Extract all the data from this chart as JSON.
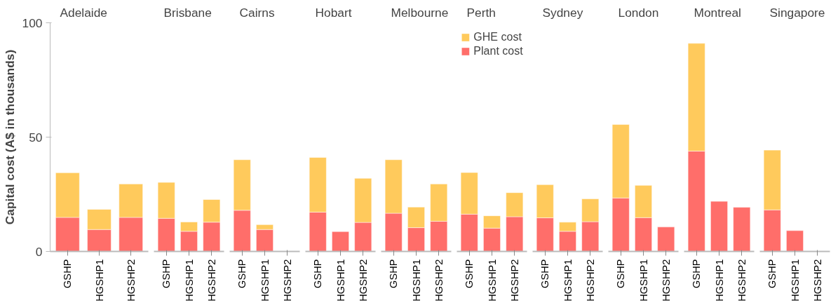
{
  "chart_data": [
    {
      "type": "bar",
      "title": "Adelaide",
      "ylabel": "Capital cost (A$ in thousands)",
      "categories": [
        "GSHP",
        "HGSHP1",
        "HGSHP2"
      ],
      "stacked": true,
      "ylim": [
        0,
        100
      ],
      "yticks": [
        0,
        50,
        100
      ],
      "grid": false,
      "series": [
        {
          "color": "#ff6e6a",
          "values": [
            14.9,
            9.6,
            14.9
          ]
        },
        {
          "color": "#ffca5c",
          "values": [
            19.5,
            8.8,
            14.6
          ]
        }
      ]
    },
    {
      "type": "bar",
      "title": "Brisbane",
      "categories": [
        "GSHP",
        "HGSHP1",
        "HGSHP2"
      ],
      "stacked": true,
      "ylim": [
        0,
        100
      ],
      "tick_labels": "x",
      "grid": false,
      "series": [
        {
          "color": "#ff6e6a",
          "values": [
            14.5,
            8.8,
            12.8
          ]
        },
        {
          "color": "#ffca5c",
          "values": [
            15.7,
            4.1,
            9.9
          ]
        }
      ]
    },
    {
      "type": "bar",
      "title": "Cairns",
      "categories": [
        "GSHP",
        "HGSHP1",
        "HGSHP2"
      ],
      "stacked": true,
      "ylim": [
        0,
        100
      ],
      "tick_labels": "x",
      "grid": false,
      "series": [
        {
          "color": "#ff6e6a",
          "values": [
            18.0,
            9.6,
            null
          ]
        },
        {
          "color": "#ffca5c",
          "values": [
            22.1,
            2.1,
            null
          ]
        }
      ]
    },
    {
      "type": "bar",
      "title": "Hobart",
      "categories": [
        "GSHP",
        "HGSHP1",
        "HGSHP2"
      ],
      "stacked": true,
      "ylim": [
        0,
        100
      ],
      "tick_labels": "x",
      "grid": false,
      "series": [
        {
          "color": "#ff6e6a",
          "values": [
            17.2,
            8.7,
            12.7
          ]
        },
        {
          "color": "#ffca5c",
          "values": [
            23.9,
            null,
            19.3
          ]
        }
      ]
    },
    {
      "type": "bar",
      "title": "Melbourne",
      "categories": [
        "GSHP",
        "HGSHP1",
        "HGSHP2"
      ],
      "stacked": true,
      "ylim": [
        0,
        100
      ],
      "tick_labels": "x",
      "grid": false,
      "series": [
        {
          "color": "#ff6e6a",
          "values": [
            16.7,
            10.4,
            13.2
          ]
        },
        {
          "color": "#ffca5c",
          "values": [
            23.4,
            9.0,
            16.3
          ]
        }
      ]
    },
    {
      "type": "bar",
      "title": "Perth",
      "categories": [
        "GSHP",
        "HGSHP1",
        "HGSHP2"
      ],
      "stacked": true,
      "ylim": [
        0,
        100
      ],
      "tick_labels": "x",
      "grid": false,
      "legend": "top",
      "series": [
        {
          "name": "Plant cost",
          "color": "#ff6e6a",
          "values": [
            16.3,
            10.2,
            15.2
          ]
        },
        {
          "name": "GHE cost",
          "color": "#ffca5c",
          "values": [
            18.2,
            5.4,
            10.5
          ]
        }
      ]
    },
    {
      "type": "bar",
      "title": "Sydney",
      "categories": [
        "GSHP",
        "HGSHP1",
        "HGSHP2"
      ],
      "stacked": true,
      "ylim": [
        0,
        100
      ],
      "tick_labels": "x",
      "grid": false,
      "series": [
        {
          "color": "#ff6e6a",
          "values": [
            14.7,
            8.8,
            13.0
          ]
        },
        {
          "color": "#ffca5c",
          "values": [
            14.5,
            4.0,
            10.0
          ]
        }
      ]
    },
    {
      "type": "bar",
      "title": "London",
      "categories": [
        "GSHP",
        "HGSHP1",
        "HGSHP2"
      ],
      "stacked": true,
      "ylim": [
        0,
        100
      ],
      "tick_labels": "x",
      "grid": false,
      "series": [
        {
          "color": "#ff6e6a",
          "values": [
            23.4,
            14.8,
            10.7
          ]
        },
        {
          "color": "#ffca5c",
          "values": [
            32.1,
            14.1,
            null
          ]
        }
      ]
    },
    {
      "type": "bar",
      "title": "Montreal",
      "categories": [
        "GSHP",
        "HGSHP1",
        "HGSHP2"
      ],
      "stacked": true,
      "ylim": [
        0,
        100
      ],
      "tick_labels": "x",
      "grid": false,
      "series": [
        {
          "color": "#ff6e6a",
          "values": [
            43.9,
            21.9,
            19.3
          ]
        },
        {
          "color": "#ffca5c",
          "values": [
            47.1,
            null,
            null
          ]
        }
      ]
    },
    {
      "type": "bar",
      "title": "Singapore",
      "categories": [
        "GSHP",
        "HGSHP1",
        "HGSHP2"
      ],
      "stacked": true,
      "ylim": [
        0,
        100
      ],
      "tick_labels": "x",
      "grid": false,
      "series": [
        {
          "color": "#ff6e6a",
          "values": [
            18.2,
            9.1,
            null
          ]
        },
        {
          "color": "#ffca5c",
          "values": [
            26.1,
            null,
            null
          ]
        }
      ]
    }
  ]
}
